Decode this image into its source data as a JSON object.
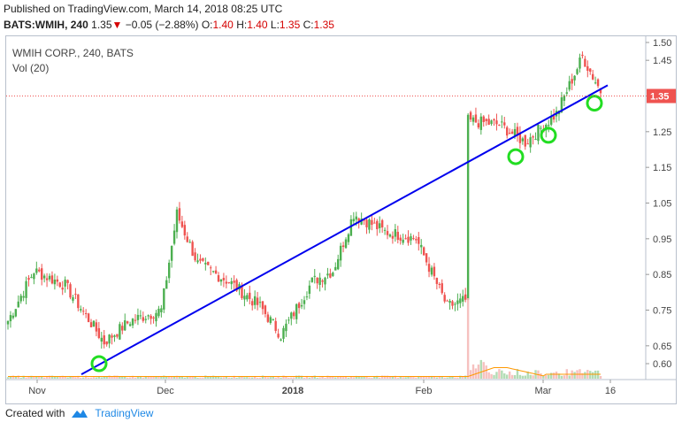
{
  "header": {
    "published": "Published on TradingView.com, March 14, 2018 08:25 UTC",
    "symbol": "BATS:WMIH, 240",
    "last": "1.35",
    "change": "−0.05 (−2.88%)",
    "o_label": "O:",
    "o_val": "1.40",
    "h_label": "H:",
    "h_val": "1.40",
    "l_label": "L:",
    "l_val": "1.35",
    "c_label": "C:",
    "c_val": "1.35"
  },
  "legend": {
    "title": "WMIH CORP., 240, BATS",
    "volume": "Vol (20)"
  },
  "footer": {
    "created_with": "Created with",
    "brand": "TradingView"
  },
  "colors": {
    "up": "#4caf50",
    "down": "#ef5350",
    "trendline": "#0000ee",
    "circle": "#22dd22",
    "price_label_bg": "#ef5350",
    "volume_ma": "#ff9800"
  },
  "chart_data": {
    "type": "candlestick",
    "x_tick_labels": [
      "Nov",
      "Dec",
      "2018",
      "Feb",
      "Mar",
      "16"
    ],
    "y_tick_labels": [
      "1.50",
      "1.45",
      "1.35",
      "1.25",
      "1.15",
      "1.05",
      "0.95",
      "0.85",
      "0.75",
      "0.65",
      "0.60"
    ],
    "ylim": [
      0.56,
      1.52
    ],
    "current_price": "1.35",
    "series": [
      {
        "name": "price",
        "segments": [
          {
            "from": 0.72,
            "to": 0.86,
            "n": 10
          },
          {
            "from": 0.86,
            "to": 0.82,
            "n": 12
          },
          {
            "from": 0.82,
            "to": 0.66,
            "n": 15
          },
          {
            "from": 0.66,
            "to": 0.72,
            "n": 10
          },
          {
            "from": 0.72,
            "to": 0.75,
            "n": 12
          },
          {
            "from": 0.75,
            "to": 1.02,
            "n": 6
          },
          {
            "from": 1.02,
            "to": 0.88,
            "n": 8
          },
          {
            "from": 0.88,
            "to": 0.83,
            "n": 12
          },
          {
            "from": 0.83,
            "to": 0.76,
            "n": 12
          },
          {
            "from": 0.76,
            "to": 0.68,
            "n": 8
          },
          {
            "from": 0.68,
            "to": 0.83,
            "n": 12
          },
          {
            "from": 0.83,
            "to": 0.86,
            "n": 8
          },
          {
            "from": 0.86,
            "to": 1.02,
            "n": 8
          },
          {
            "from": 1.02,
            "to": 0.97,
            "n": 12
          },
          {
            "from": 0.97,
            "to": 0.95,
            "n": 12
          },
          {
            "from": 0.95,
            "to": 0.76,
            "n": 12
          },
          {
            "from": 0.76,
            "to": 0.78,
            "n": 8
          },
          {
            "from": 1.28,
            "to": 1.27,
            "n": 12
          },
          {
            "from": 1.27,
            "to": 1.22,
            "n": 10
          },
          {
            "from": 1.22,
            "to": 1.3,
            "n": 12
          },
          {
            "from": 1.3,
            "to": 1.46,
            "n": 10
          },
          {
            "from": 1.46,
            "to": 1.35,
            "n": 8
          }
        ]
      }
    ],
    "volume_spike": {
      "value_fraction": 0.91
    },
    "trendline": {
      "x_start": "Nov",
      "y_start": 0.57,
      "y_end": 1.38
    },
    "highlight_points": [
      0.6,
      1.18,
      1.24,
      1.33
    ]
  }
}
